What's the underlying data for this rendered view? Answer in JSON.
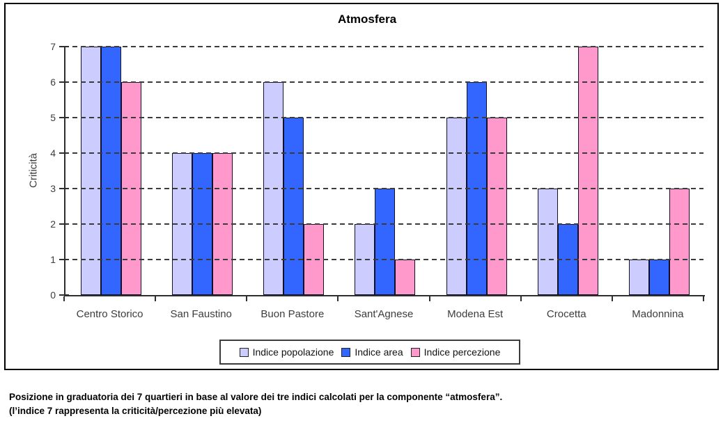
{
  "chart_data": {
    "type": "bar",
    "title": "Atmosfera",
    "ylabel": "Criticità",
    "xlabel": "",
    "categories": [
      "Centro Storico",
      "San Faustino",
      "Buon Pastore",
      "Sant'Agnese",
      "Modena Est",
      "Crocetta",
      "Madonnina"
    ],
    "series": [
      {
        "name": "Indice popolazione",
        "color": "#CCCCFF",
        "values": [
          7,
          4,
          6,
          2,
          5,
          3,
          1
        ]
      },
      {
        "name": "Indice area",
        "color": "#3366FF",
        "values": [
          7,
          4,
          5,
          3,
          6,
          2,
          1
        ]
      },
      {
        "name": "Indice percezione",
        "color": "#FF99CC",
        "values": [
          6,
          4,
          2,
          1,
          5,
          7,
          3
        ]
      }
    ],
    "ylim": [
      0,
      7
    ],
    "yticks": [
      0,
      1,
      2,
      3,
      4,
      5,
      6,
      7
    ],
    "grid": "horizontal-dashed",
    "legend_position": "bottom",
    "bar_border_color": "#10102A",
    "axis_color": "#2E2E2E"
  },
  "caption": {
    "line1": "Posizione in graduatoria dei 7 quartieri in base al valore dei tre indici calcolati per la componente “atmosfera”.",
    "line2": "(l’indice 7 rappresenta la criticità/percezione più elevata)"
  }
}
